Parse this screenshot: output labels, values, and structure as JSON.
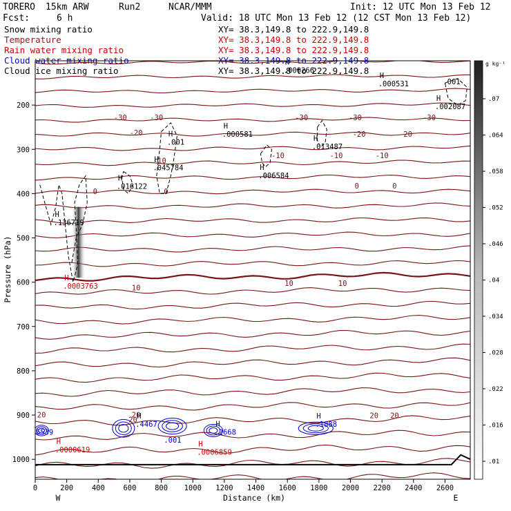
{
  "header": {
    "model": "TORERO",
    "resolution": "15km ARW",
    "run": "Run2",
    "org": "NCAR/MMM",
    "init": "Init: 12 UTC Mon 13 Feb 12",
    "fcst_label": "Fcst:",
    "fcst_value": "6 h",
    "valid": "Valid: 18 UTC Mon 13 Feb 12 (12 CST Mon 13 Feb 12)"
  },
  "fields": [
    {
      "name": "Snow mixing ratio",
      "xy": "XY=  38.3,149.8 to 222.9,149.8",
      "color": "#000000"
    },
    {
      "name": "Temperature",
      "xy": "XY=  38.3,149.8 to 222.9,149.8",
      "color": "#8b1a1a"
    },
    {
      "name": "Rain water mixing ratio",
      "xy": "XY=  38.3,149.8 to 222.9,149.8",
      "color": "#cc0000"
    },
    {
      "name": "Cloud water mixing ratio",
      "xy": "XY=  38.3,149.8 to 222.9,149.8",
      "color": "#0000cc"
    },
    {
      "name": "Cloud ice mixing ratio",
      "xy": "XY=  38.3,149.8 to 222.9,149.8",
      "color": "#000000"
    }
  ],
  "colors": {
    "temperature": "#7a1414",
    "rain": "#cc0000",
    "cloud_water": "#0000cc",
    "snow": "#000000",
    "ground": "#000000"
  },
  "chart_data": {
    "type": "contour",
    "xlabel": "Distance (km)",
    "ylabel": "Pressure (hPa)",
    "x_ticks": [
      0,
      200,
      400,
      600,
      800,
      1000,
      1200,
      1400,
      1600,
      1800,
      2000,
      2200,
      2400,
      2600
    ],
    "xlim": [
      0,
      2760
    ],
    "y_ticks": [
      200,
      300,
      400,
      500,
      600,
      700,
      800,
      900,
      1000
    ],
    "ylim": [
      100,
      1045
    ],
    "west_label": "W",
    "east_label": "E",
    "colorbar": {
      "unit": "g kg⁻¹",
      "ticks": [
        ".07",
        ".064",
        ".058",
        ".052",
        ".046",
        ".04",
        ".034",
        ".028",
        ".022",
        ".016",
        ".01"
      ],
      "range": [
        0.007,
        0.073
      ]
    },
    "temperature_labels": [
      {
        "text": "-30",
        "x": 540,
        "p": 228
      },
      {
        "text": "-30",
        "x": 770,
        "p": 228
      },
      {
        "text": "-30",
        "x": 1690,
        "p": 228
      },
      {
        "text": "-30",
        "x": 2030,
        "p": 228
      },
      {
        "text": "-30",
        "x": 2500,
        "p": 228
      },
      {
        "text": "-20",
        "x": 640,
        "p": 262
      },
      {
        "text": "-20",
        "x": 2055,
        "p": 265
      },
      {
        "text": "-20",
        "x": 2350,
        "p": 265
      },
      {
        "text": "-10",
        "x": 1540,
        "p": 314
      },
      {
        "text": "-10",
        "x": 1910,
        "p": 314
      },
      {
        "text": "-10",
        "x": 2200,
        "p": 314
      },
      {
        "text": "-10",
        "x": 790,
        "p": 325
      },
      {
        "text": "0",
        "x": 380,
        "p": 395
      },
      {
        "text": "0",
        "x": 830,
        "p": 395
      },
      {
        "text": "0",
        "x": 2040,
        "p": 382
      },
      {
        "text": "0",
        "x": 2280,
        "p": 382
      },
      {
        "text": "10",
        "x": 640,
        "p": 612
      },
      {
        "text": "10",
        "x": 1610,
        "p": 602
      },
      {
        "text": "10",
        "x": 1950,
        "p": 602
      },
      {
        "text": "20",
        "x": 40,
        "p": 899
      },
      {
        "text": "20",
        "x": 640,
        "p": 899
      },
      {
        "text": "20",
        "x": 2150,
        "p": 901
      },
      {
        "text": "20",
        "x": 2280,
        "p": 901
      },
      {
        "text": "20",
        "x": 620,
        "p": 910
      }
    ],
    "extrema": [
      {
        "letter": "H",
        "value": ".136719",
        "x": 160,
        "p": 462,
        "color": "#000000"
      },
      {
        "letter": "H",
        "value": ".0003763",
        "x": 220,
        "p": 605,
        "color": "#cc0000"
      },
      {
        "letter": "H",
        "value": ".001",
        "x": 880,
        "p": 280,
        "color": "#000000"
      },
      {
        "letter": "H",
        "value": ".045784",
        "x": 790,
        "p": 338,
        "color": "#000000"
      },
      {
        "letter": "H",
        "value": ".016122",
        "x": 560,
        "p": 380,
        "color": "#000000"
      },
      {
        "letter": "H",
        "value": ".000581",
        "x": 1230,
        "p": 262,
        "color": "#000000"
      },
      {
        "letter": "H",
        "value": ".006584",
        "x": 1460,
        "p": 356,
        "color": "#000000"
      },
      {
        "letter": "H",
        "value": ".013487",
        "x": 1800,
        "p": 290,
        "color": "#000000"
      },
      {
        "letter": "H",
        "value": ".000266",
        "x": 1620,
        "p": 118,
        "color": "#000000"
      },
      {
        "letter": "H",
        "value": ".000531",
        "x": 2220,
        "p": 148,
        "color": "#000000"
      },
      {
        "letter": "H",
        "value": ".002087",
        "x": 2580,
        "p": 200,
        "color": "#000000"
      },
      {
        "letter": "",
        "value": ".001",
        "x": 2630,
        "p": 144,
        "color": "#000000"
      },
      {
        "letter": "H",
        "value": ".4467",
        "x": 680,
        "p": 917,
        "color": "#0000cc"
      },
      {
        "letter": "",
        "value": ".001",
        "x": 860,
        "p": 953,
        "color": "#0000cc"
      },
      {
        "letter": "H",
        "value": ".2668",
        "x": 1180,
        "p": 935,
        "color": "#0000cc"
      },
      {
        "letter": "H",
        "value": ".1888",
        "x": 1820,
        "p": 917,
        "color": "#0000cc"
      },
      {
        "letter": "",
        "value": ".6539",
        "x": 20,
        "p": 935,
        "color": "#0000cc"
      },
      {
        "letter": "H",
        "value": ".0000619",
        "x": 170,
        "p": 975,
        "color": "#cc0000"
      },
      {
        "letter": "H",
        "value": ".0006859",
        "x": 1070,
        "p": 980,
        "color": "#cc0000"
      }
    ]
  }
}
